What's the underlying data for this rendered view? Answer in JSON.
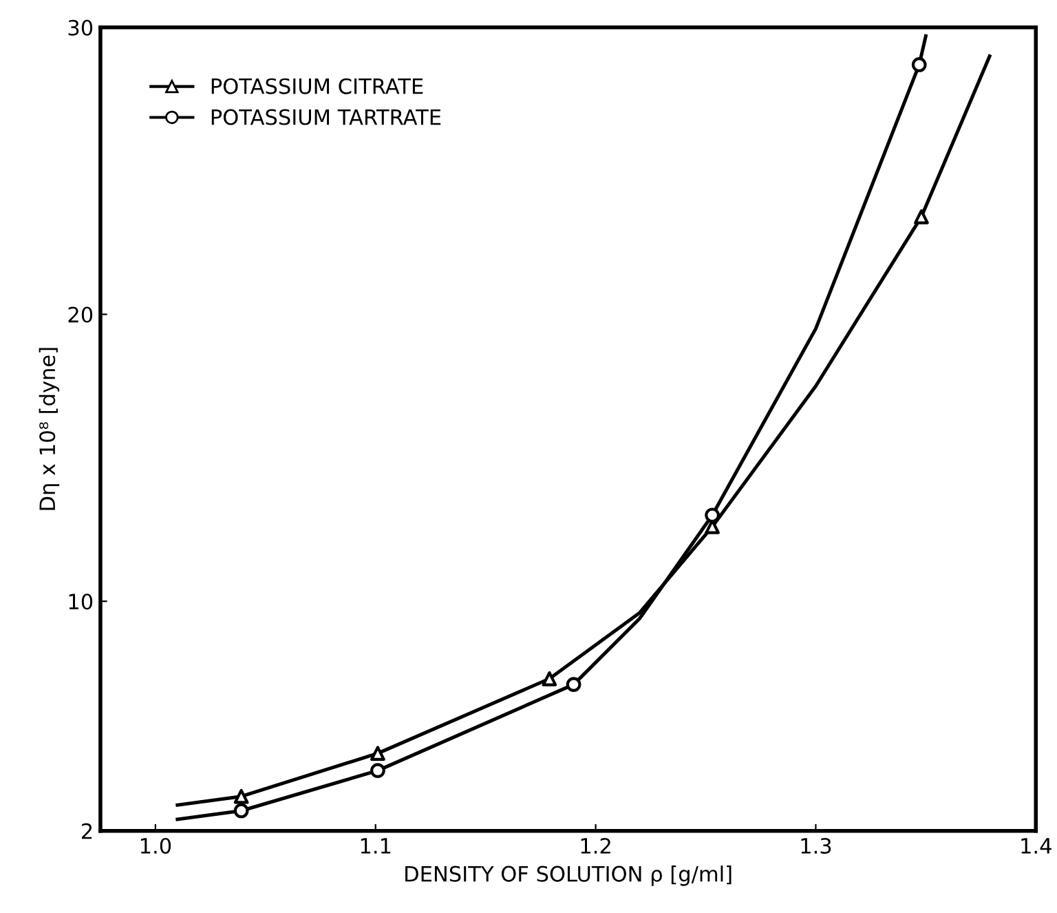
{
  "chart_data": {
    "type": "line",
    "xlabel": "DENSITY OF SOLUTION ρ [g/ml]",
    "ylabel": "Dη x 10⁸ [dyne]",
    "xlim": [
      0.975,
      1.4
    ],
    "ylim": [
      2,
      30
    ],
    "xticks": [
      {
        "value": 1.0,
        "label": "1.0"
      },
      {
        "value": 1.1,
        "label": "1.1"
      },
      {
        "value": 1.2,
        "label": "1.2"
      },
      {
        "value": 1.3,
        "label": "1.3"
      },
      {
        "value": 1.4,
        "label": "1.4"
      }
    ],
    "yticks": [
      2,
      10,
      20,
      30
    ],
    "grid": false,
    "legend": "top left",
    "series": [
      {
        "name": "POTASSIUM CITRATE",
        "type": "scatter",
        "marker": "triangle",
        "color": "#000000",
        "x": [
          1.039,
          1.101,
          1.179,
          1.253,
          1.348
        ],
        "values": [
          3.2,
          4.7,
          7.3,
          12.6,
          23.4
        ]
      },
      {
        "name": "POTASSIUM TARTRATE",
        "type": "scatter",
        "marker": "circle",
        "color": "#000000",
        "x": [
          1.039,
          1.101,
          1.19,
          1.253,
          1.347
        ],
        "values": [
          2.7,
          4.1,
          7.1,
          13.0,
          28.7
        ]
      },
      {
        "color": "#000000",
        "line_style": "solid",
        "x": [
          1.01,
          1.039,
          1.101,
          1.179,
          1.22,
          1.253,
          1.3,
          1.348,
          1.379
        ],
        "values": [
          2.9,
          3.2,
          4.7,
          7.3,
          9.6,
          12.6,
          17.5,
          23.4,
          29.0
        ]
      },
      {
        "color": "#000000",
        "line_style": "solid",
        "x": [
          1.01,
          1.039,
          1.101,
          1.19,
          1.22,
          1.253,
          1.3,
          1.347,
          1.35
        ],
        "values": [
          2.4,
          2.7,
          4.1,
          7.1,
          9.4,
          13.0,
          19.5,
          28.7,
          29.7
        ]
      }
    ]
  }
}
